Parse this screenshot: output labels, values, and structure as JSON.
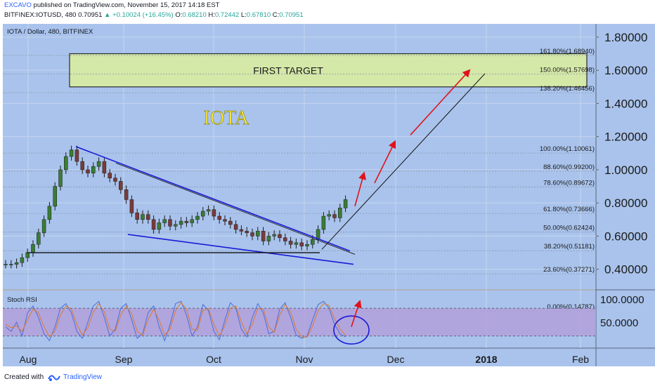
{
  "header": {
    "author": "EXCAVO",
    "published_text": "published on TradingView.com, November 15, 2017 14:18 EST",
    "symbol": "BITFINEX:IOTUSD, 480",
    "last": "0.70951",
    "change": "+0.10024 (+16.45%)",
    "o_label": "O:",
    "o": "0.68210",
    "h_label": "H:",
    "h": "0.72442",
    "l_label": "L:",
    "l": "0.67810",
    "c_label": "C:",
    "c": "0.70951"
  },
  "chart_title": "IOTA / Dollar, 480, BITFINEX",
  "annotations": {
    "big_label": "IOTA",
    "target_box": "FIRST TARGET"
  },
  "footer": {
    "created_with": "Created with",
    "brand": "TradingView"
  },
  "colors": {
    "background": "#a9c3ec",
    "rsi_band": "#b39ddb",
    "target_box": "#d4e8a8",
    "iota_label": "#ffeb3b",
    "trend_lines": "#1a1ad6",
    "arrows": "#e0121b"
  },
  "chart_data": [
    {
      "type": "candlestick",
      "title": "IOTA / Dollar, 480, BITFINEX",
      "x_ticks": [
        "Aug",
        "Sep",
        "Oct",
        "Nov",
        "Dec",
        "2018",
        "Feb"
      ],
      "y_ticks": [
        "0.40000",
        "0.60000",
        "0.80000",
        "1.00000",
        "1.20000",
        "1.40000",
        "1.60000",
        "1.80000"
      ],
      "ylim": [
        0.28,
        1.88
      ],
      "grid": true,
      "price_path": [
        [
          0,
          0.43
        ],
        [
          1,
          0.43
        ],
        [
          2,
          0.44
        ],
        [
          3,
          0.47
        ],
        [
          4,
          0.5
        ],
        [
          5,
          0.55
        ],
        [
          6,
          0.62
        ],
        [
          7,
          0.7
        ],
        [
          8,
          0.78
        ],
        [
          9,
          0.9
        ],
        [
          10,
          1.0
        ],
        [
          11,
          1.08
        ],
        [
          12,
          1.12
        ],
        [
          13,
          1.05
        ],
        [
          14,
          1.0
        ],
        [
          15,
          0.98
        ],
        [
          16,
          1.02
        ],
        [
          17,
          1.05
        ],
        [
          18,
          0.98
        ],
        [
          19,
          0.95
        ],
        [
          20,
          0.93
        ],
        [
          21,
          0.88
        ],
        [
          22,
          0.82
        ],
        [
          23,
          0.74
        ],
        [
          24,
          0.7
        ],
        [
          25,
          0.73
        ],
        [
          26,
          0.7
        ],
        [
          27,
          0.64
        ],
        [
          28,
          0.68
        ],
        [
          29,
          0.7
        ],
        [
          30,
          0.66
        ],
        [
          31,
          0.67
        ],
        [
          32,
          0.69
        ],
        [
          33,
          0.68
        ],
        [
          34,
          0.7
        ],
        [
          35,
          0.72
        ],
        [
          36,
          0.75
        ],
        [
          37,
          0.76
        ],
        [
          38,
          0.72
        ],
        [
          39,
          0.7
        ],
        [
          40,
          0.69
        ],
        [
          41,
          0.67
        ],
        [
          42,
          0.64
        ],
        [
          43,
          0.63
        ],
        [
          44,
          0.62
        ],
        [
          45,
          0.6
        ],
        [
          46,
          0.63
        ],
        [
          47,
          0.57
        ],
        [
          48,
          0.6
        ],
        [
          49,
          0.61
        ],
        [
          50,
          0.59
        ],
        [
          51,
          0.57
        ],
        [
          52,
          0.55
        ],
        [
          53,
          0.56
        ],
        [
          54,
          0.54
        ],
        [
          55,
          0.55
        ],
        [
          56,
          0.58
        ],
        [
          57,
          0.64
        ],
        [
          58,
          0.72
        ],
        [
          59,
          0.73
        ],
        [
          60,
          0.71
        ],
        [
          61,
          0.77
        ],
        [
          62,
          0.82
        ]
      ],
      "fibonacci": [
        {
          "label": "0.00%(0.14787)",
          "value": 0.14787
        },
        {
          "label": "23.60%(0.37271)",
          "value": 0.37271
        },
        {
          "label": "38.20%(0.51181)",
          "value": 0.51181
        },
        {
          "label": "50.00%(0.62424)",
          "value": 0.62424
        },
        {
          "label": "61.80%(0.73666)",
          "value": 0.73666
        },
        {
          "label": "78.60%(0.89672)",
          "value": 0.89672
        },
        {
          "label": "88.60%(0.99200)",
          "value": 0.992
        },
        {
          "label": "100.00%(1.10061)",
          "value": 1.10061
        },
        {
          "label": "138.20%(1.46456)",
          "value": 1.46456
        },
        {
          "label": "150.00%(1.57698)",
          "value": 1.57698
        },
        {
          "label": "161.80%(1.68940)",
          "value": 1.6894
        }
      ]
    },
    {
      "type": "line",
      "title": "Stoch RSI",
      "y_ticks": [
        "50.0000",
        "100.0000"
      ],
      "band": [
        20,
        80
      ],
      "series": [
        {
          "values": [
            40,
            30,
            50,
            20,
            70,
            85,
            60,
            25,
            10,
            40,
            80,
            90,
            70,
            30,
            15,
            50,
            85,
            95,
            60,
            20,
            35,
            80,
            90,
            55,
            15,
            25,
            70,
            85,
            40,
            10,
            45,
            90,
            95,
            65,
            20,
            40,
            88,
            75,
            30,
            12,
            55,
            92,
            80,
            35,
            18,
            60,
            90,
            70,
            25,
            30,
            78,
            92,
            60,
            22,
            15,
            20,
            55,
            88,
            95,
            80,
            45,
            25,
            18
          ]
        },
        {
          "values": [
            45,
            38,
            42,
            30,
            55,
            78,
            70,
            40,
            18,
            30,
            65,
            85,
            78,
            45,
            22,
            38,
            72,
            90,
            72,
            35,
            30,
            65,
            85,
            68,
            30,
            22,
            55,
            78,
            55,
            22,
            35,
            75,
            92,
            78,
            35,
            32,
            75,
            80,
            45,
            20,
            42,
            80,
            85,
            50,
            25,
            45,
            80,
            78,
            40,
            28,
            65,
            88,
            72,
            35,
            18,
            18,
            42,
            75,
            90,
            86,
            58,
            35,
            22
          ]
        }
      ]
    }
  ]
}
